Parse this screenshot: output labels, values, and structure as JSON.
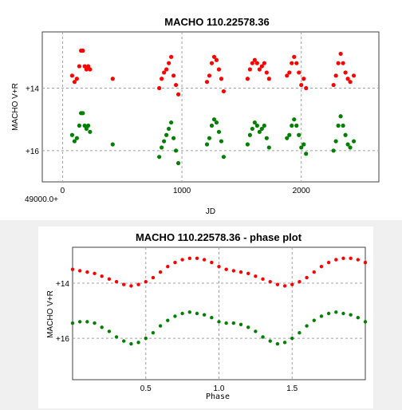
{
  "colors": {
    "red_series": "#ff0000",
    "green_series": "#008000"
  },
  "chart_data": [
    {
      "type": "scatter",
      "title": "MACHO 110.22578.36",
      "xlabel": "JD",
      "ylabel": "MACHO V+R",
      "x_offset_label": "49000.0+",
      "xlim": [
        -170,
        1000,
        2650
      ],
      "ylim": [
        12.1,
        16.9
      ],
      "y_inverted": true,
      "x_ticks": [
        0,
        1000,
        2000
      ],
      "x_tick_labels": [
        "0",
        "1000",
        "2000"
      ],
      "y_ticks": [
        13.9,
        15.9
      ],
      "y_tick_labels": [
        "+14",
        "+16"
      ],
      "grid": true,
      "series": [
        {
          "color": "#ff0000",
          "x": [
            80,
            100,
            120,
            140,
            155,
            170,
            185,
            200,
            215,
            230,
            420,
            810,
            830,
            850,
            870,
            890,
            910,
            930,
            950,
            970,
            1210,
            1230,
            1250,
            1270,
            1290,
            1310,
            1330,
            1350,
            1550,
            1570,
            1590,
            1610,
            1630,
            1650,
            1670,
            1690,
            1710,
            1730,
            1880,
            1900,
            1920,
            1940,
            1960,
            1980,
            2000,
            2020,
            2040,
            2270,
            2290,
            2310,
            2330,
            2350,
            2370,
            2390,
            2410,
            2440
          ],
          "y": [
            13.5,
            13.7,
            13.6,
            13.2,
            12.7,
            12.7,
            13.2,
            13.3,
            13.2,
            13.3,
            13.6,
            13.9,
            13.6,
            13.4,
            13.3,
            13.1,
            12.9,
            13.5,
            13.8,
            14.1,
            13.7,
            13.5,
            13.1,
            12.9,
            13.0,
            13.3,
            13.6,
            14.0,
            13.6,
            13.3,
            13.1,
            13.0,
            13.1,
            13.3,
            13.2,
            13.1,
            13.4,
            13.6,
            13.5,
            13.4,
            13.1,
            12.9,
            13.1,
            13.4,
            13.8,
            13.6,
            13.9,
            13.8,
            13.5,
            13.1,
            12.8,
            13.1,
            13.4,
            13.6,
            13.7,
            13.5
          ]
        },
        {
          "color": "#008000",
          "x": [
            80,
            100,
            120,
            140,
            155,
            170,
            185,
            200,
            215,
            230,
            420,
            810,
            830,
            850,
            870,
            890,
            910,
            930,
            950,
            970,
            1210,
            1230,
            1250,
            1270,
            1290,
            1310,
            1330,
            1350,
            1550,
            1570,
            1590,
            1610,
            1630,
            1650,
            1670,
            1690,
            1710,
            1730,
            1880,
            1900,
            1920,
            1940,
            1960,
            1980,
            2000,
            2020,
            2040,
            2270,
            2290,
            2310,
            2330,
            2350,
            2370,
            2390,
            2410,
            2440
          ],
          "y": [
            15.4,
            15.6,
            15.5,
            15.1,
            14.7,
            14.7,
            15.1,
            15.2,
            15.1,
            15.3,
            15.7,
            16.1,
            15.8,
            15.6,
            15.4,
            15.2,
            15.0,
            15.5,
            15.9,
            16.3,
            15.7,
            15.5,
            15.1,
            14.9,
            15.0,
            15.3,
            15.6,
            16.1,
            15.7,
            15.4,
            15.2,
            15.0,
            15.1,
            15.3,
            15.2,
            15.1,
            15.5,
            15.8,
            15.5,
            15.4,
            15.1,
            14.9,
            15.1,
            15.4,
            15.8,
            15.7,
            16.0,
            15.9,
            15.6,
            15.1,
            14.8,
            15.1,
            15.4,
            15.7,
            15.8,
            15.6
          ]
        }
      ]
    },
    {
      "type": "scatter",
      "title": "MACHO 110.22578.36 - phase plot",
      "xlabel": "Phase",
      "ylabel": "MACHO V+R",
      "xlim": [
        0.0,
        2.0
      ],
      "ylim": [
        12.6,
        17.4
      ],
      "y_inverted": true,
      "x_ticks": [
        0.5,
        1.0,
        1.5
      ],
      "x_tick_labels": [
        "0.5",
        "1.0",
        "1.5"
      ],
      "y_ticks": [
        13.9,
        15.9
      ],
      "y_tick_labels": [
        "+14",
        "+16"
      ],
      "grid": true,
      "series": [
        {
          "color": "#ff0000",
          "x": [
            0.0,
            0.05,
            0.1,
            0.15,
            0.2,
            0.25,
            0.3,
            0.35,
            0.4,
            0.45,
            0.5,
            0.55,
            0.6,
            0.65,
            0.7,
            0.75,
            0.8,
            0.85,
            0.9,
            0.95,
            1.0,
            1.05,
            1.1,
            1.15,
            1.2,
            1.25,
            1.3,
            1.35,
            1.4,
            1.45,
            1.5,
            1.55,
            1.6,
            1.65,
            1.7,
            1.75,
            1.8,
            1.85,
            1.9,
            1.95,
            2.0
          ],
          "y": [
            13.4,
            13.45,
            13.5,
            13.55,
            13.65,
            13.75,
            13.85,
            13.95,
            14.0,
            13.95,
            13.85,
            13.7,
            13.5,
            13.3,
            13.15,
            13.05,
            13.0,
            13.0,
            13.05,
            13.15,
            13.3,
            13.4,
            13.45,
            13.5,
            13.55,
            13.65,
            13.75,
            13.85,
            13.95,
            14.0,
            13.95,
            13.85,
            13.7,
            13.5,
            13.3,
            13.15,
            13.05,
            13.0,
            13.0,
            13.05,
            13.15
          ]
        },
        {
          "color": "#008000",
          "x": [
            0.0,
            0.05,
            0.1,
            0.15,
            0.2,
            0.25,
            0.3,
            0.35,
            0.4,
            0.45,
            0.5,
            0.55,
            0.6,
            0.65,
            0.7,
            0.75,
            0.8,
            0.85,
            0.9,
            0.95,
            1.0,
            1.05,
            1.1,
            1.15,
            1.2,
            1.25,
            1.3,
            1.35,
            1.4,
            1.45,
            1.5,
            1.55,
            1.6,
            1.65,
            1.7,
            1.75,
            1.8,
            1.85,
            1.9,
            1.95,
            2.0
          ],
          "y": [
            15.35,
            15.3,
            15.3,
            15.35,
            15.5,
            15.65,
            15.85,
            16.0,
            16.1,
            16.05,
            15.9,
            15.7,
            15.45,
            15.25,
            15.1,
            15.0,
            14.95,
            15.0,
            15.05,
            15.15,
            15.3,
            15.35,
            15.35,
            15.4,
            15.5,
            15.65,
            15.85,
            16.0,
            16.1,
            16.05,
            15.9,
            15.7,
            15.45,
            15.25,
            15.1,
            15.0,
            14.95,
            15.0,
            15.05,
            15.15,
            15.3
          ]
        }
      ]
    }
  ]
}
